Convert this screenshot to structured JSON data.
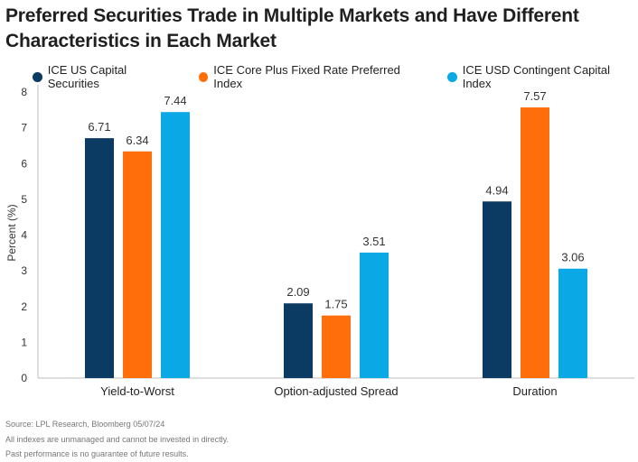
{
  "title": "Preferred Securities Trade in Multiple Markets and Have Different Characteristics in Each Market",
  "colors": {
    "series0": "#0b3a63",
    "series1": "#ff6e0a",
    "series2": "#0aa9e6",
    "grid": "#d9d9d9"
  },
  "footnotes": [
    "Source: LPL Research, Bloomberg 05/07/24",
    "All indexes are unmanaged and cannot be invested in directly.",
    "Past performance is no guarantee of future results."
  ],
  "chart_data": {
    "type": "bar",
    "title": "Preferred Securities Trade in Multiple Markets and Have Different Characteristics in Each Market",
    "xlabel": "",
    "ylabel": "Percent (%)",
    "ylim": [
      0,
      8
    ],
    "yticks": [
      "0",
      "1",
      "2",
      "3",
      "4",
      "5",
      "6",
      "7",
      "8"
    ],
    "grid": false,
    "legend_position": "top",
    "categories": [
      "Yield-to-Worst",
      "Option-adjusted Spread",
      "Duration"
    ],
    "series": [
      {
        "name": "ICE US Capital Securities",
        "values": [
          6.71,
          2.09,
          4.94
        ],
        "labels": [
          "6.71",
          "2.09",
          "4.94"
        ]
      },
      {
        "name": "ICE Core Plus Fixed Rate Preferred Index",
        "values": [
          6.34,
          1.75,
          7.57
        ],
        "labels": [
          "6.34",
          "1.75",
          "7.57"
        ]
      },
      {
        "name": "ICE USD Contingent Capital Index",
        "values": [
          7.44,
          3.51,
          3.06
        ],
        "labels": [
          "7.44",
          "3.51",
          "3.06"
        ]
      }
    ]
  }
}
